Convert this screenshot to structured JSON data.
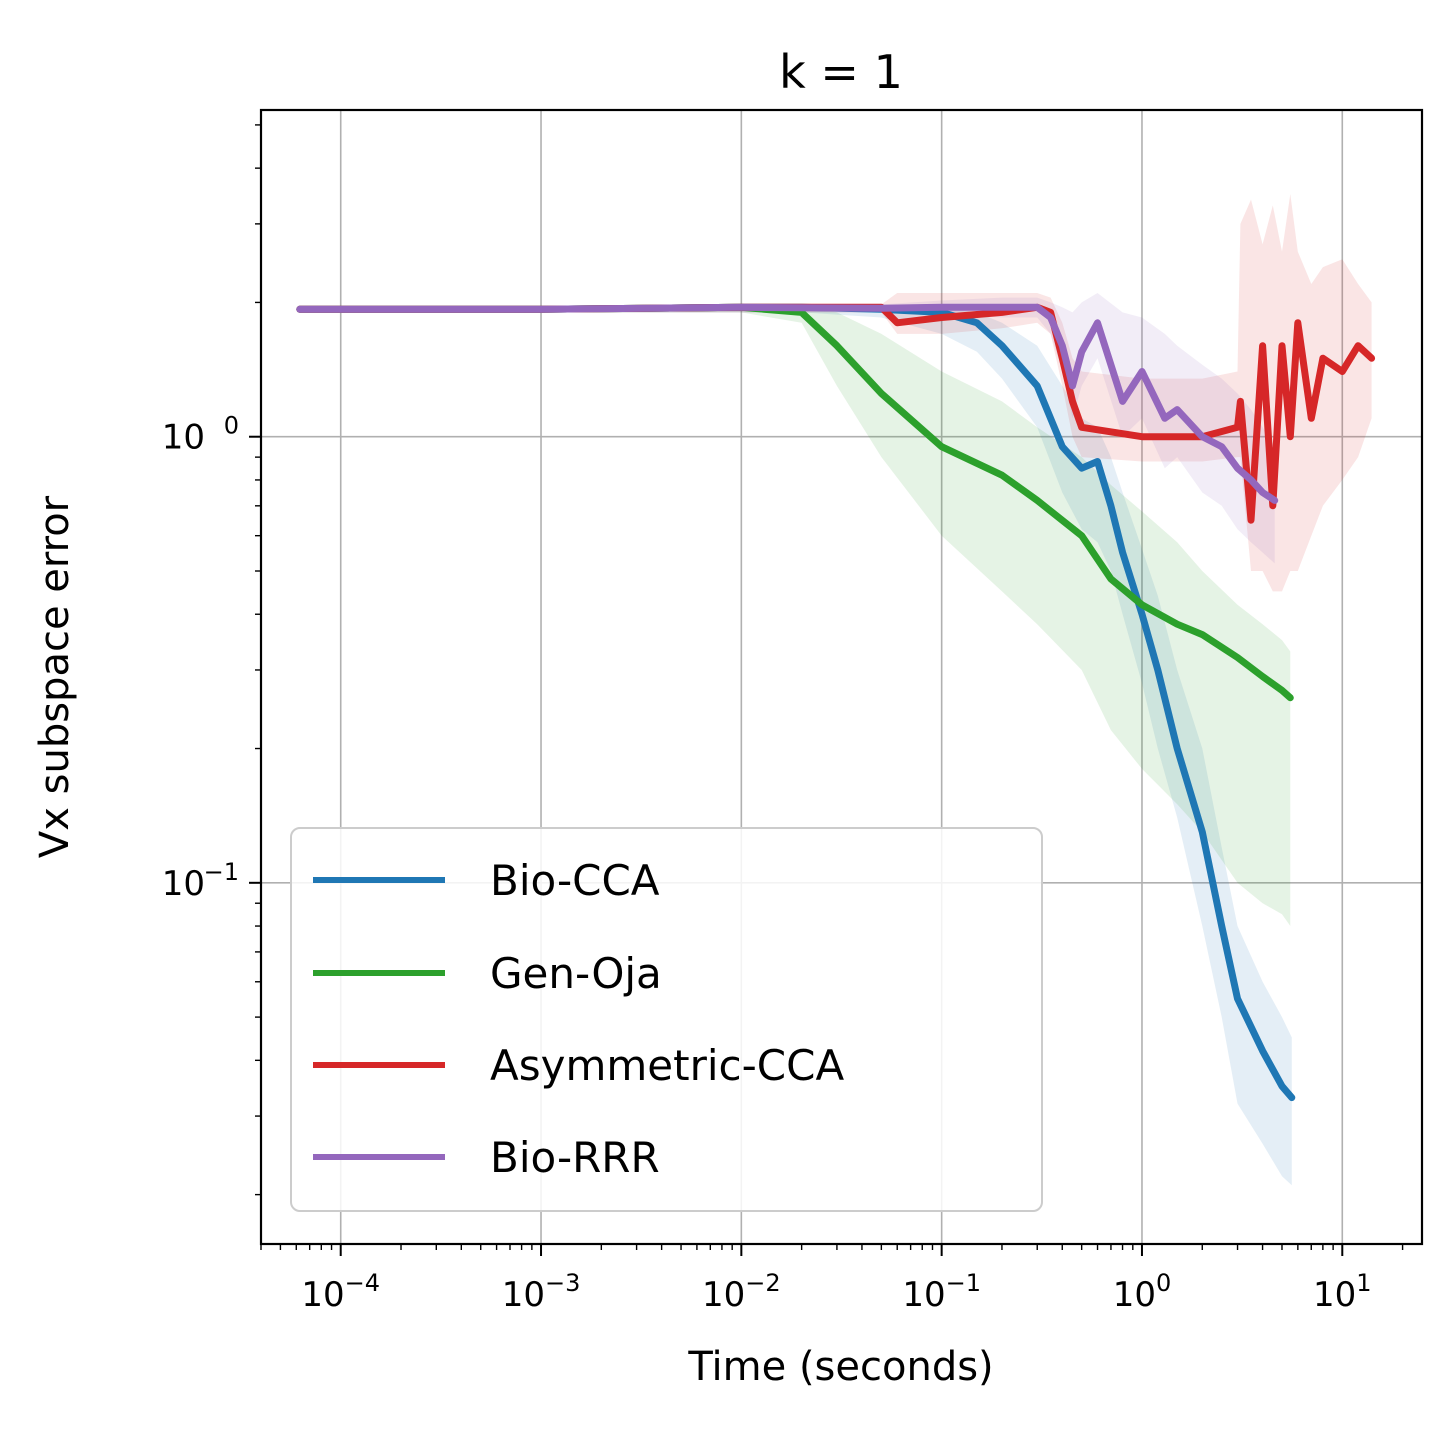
{
  "chart_data": {
    "type": "line",
    "title": "k = 1",
    "xlabel": "Time (seconds)",
    "ylabel": "Vx subspace error",
    "xscale": "log",
    "yscale": "log",
    "xlim": [
      4e-05,
      25
    ],
    "ylim": [
      0.0155,
      5.4
    ],
    "grid": true,
    "legend_position": "lower-left",
    "x_ticks": [
      {
        "value": 0.0001,
        "base": "10",
        "exp": "−4"
      },
      {
        "value": 0.001,
        "base": "10",
        "exp": "−3"
      },
      {
        "value": 0.01,
        "base": "10",
        "exp": "−2"
      },
      {
        "value": 0.1,
        "base": "10",
        "exp": "−1"
      },
      {
        "value": 1,
        "base": "10",
        "exp": "0"
      },
      {
        "value": 10,
        "base": "10",
        "exp": "1"
      }
    ],
    "y_ticks": [
      {
        "value": 0.1,
        "base": "10",
        "exp": "−1"
      },
      {
        "value": 1,
        "base": "10",
        "exp": "0"
      }
    ],
    "series": [
      {
        "name": "Bio-CCA",
        "color": "#1f77b4",
        "x": [
          6.25e-05,
          0.001,
          0.01,
          0.02,
          0.05,
          0.1,
          0.15,
          0.2,
          0.3,
          0.4,
          0.5,
          0.6,
          0.7,
          0.8,
          1.0,
          1.2,
          1.5,
          2.0,
          2.5,
          3.0,
          4.0,
          5.0,
          5.6
        ],
        "y": [
          1.93,
          1.93,
          1.95,
          1.95,
          1.93,
          1.9,
          1.8,
          1.6,
          1.3,
          0.95,
          0.85,
          0.88,
          0.7,
          0.55,
          0.4,
          0.3,
          0.2,
          0.13,
          0.08,
          0.055,
          0.042,
          0.035,
          0.033
        ],
        "band_lower": [
          1.9,
          1.9,
          1.9,
          1.9,
          1.85,
          1.7,
          1.55,
          1.35,
          1.05,
          0.75,
          0.62,
          0.58,
          0.5,
          0.4,
          0.28,
          0.2,
          0.14,
          0.08,
          0.05,
          0.032,
          0.026,
          0.022,
          0.021
        ],
        "band_upper": [
          1.96,
          1.96,
          1.98,
          1.98,
          1.96,
          1.95,
          1.9,
          1.8,
          1.6,
          1.3,
          1.1,
          1.05,
          0.9,
          0.75,
          0.56,
          0.44,
          0.3,
          0.2,
          0.12,
          0.08,
          0.06,
          0.05,
          0.045
        ]
      },
      {
        "name": "Gen-Oja",
        "color": "#2ca02c",
        "x": [
          6.25e-05,
          0.001,
          0.01,
          0.02,
          0.03,
          0.05,
          0.1,
          0.2,
          0.3,
          0.5,
          0.7,
          1.0,
          1.5,
          2.0,
          3.0,
          4.0,
          5.0,
          5.5
        ],
        "y": [
          1.93,
          1.93,
          1.95,
          1.9,
          1.6,
          1.25,
          0.95,
          0.82,
          0.72,
          0.6,
          0.48,
          0.42,
          0.38,
          0.36,
          0.32,
          0.29,
          0.27,
          0.26
        ],
        "band_lower": [
          1.9,
          1.9,
          1.9,
          1.8,
          1.3,
          0.9,
          0.6,
          0.45,
          0.38,
          0.3,
          0.22,
          0.18,
          0.15,
          0.13,
          0.1,
          0.09,
          0.085,
          0.08
        ],
        "band_upper": [
          1.96,
          1.96,
          1.98,
          1.96,
          1.9,
          1.7,
          1.4,
          1.2,
          1.05,
          0.9,
          0.78,
          0.68,
          0.58,
          0.5,
          0.42,
          0.38,
          0.35,
          0.33
        ]
      },
      {
        "name": "Asymmetric-CCA",
        "color": "#d62728",
        "x": [
          6.25e-05,
          0.001,
          0.01,
          0.05,
          0.06,
          0.1,
          0.2,
          0.3,
          0.35,
          0.4,
          0.45,
          0.5,
          1.0,
          2.0,
          3.0,
          3.1,
          3.5,
          4.0,
          4.5,
          5.0,
          5.5,
          6.0,
          7.0,
          8.0,
          10.0,
          12.0,
          14.0
        ],
        "y": [
          1.93,
          1.93,
          1.95,
          1.95,
          1.8,
          1.85,
          1.9,
          1.95,
          1.9,
          1.5,
          1.2,
          1.05,
          1.0,
          1.0,
          1.05,
          1.2,
          0.65,
          1.6,
          0.7,
          1.6,
          1.0,
          1.8,
          1.1,
          1.5,
          1.4,
          1.6,
          1.5
        ],
        "band_lower": [
          1.9,
          1.9,
          1.9,
          1.9,
          1.7,
          1.7,
          1.75,
          1.8,
          1.7,
          1.3,
          1.0,
          0.9,
          0.88,
          0.88,
          0.9,
          0.9,
          0.5,
          0.5,
          0.45,
          0.45,
          0.5,
          0.5,
          0.6,
          0.7,
          0.8,
          0.9,
          1.1
        ],
        "band_upper": [
          1.96,
          1.96,
          1.98,
          1.98,
          2.1,
          2.1,
          2.1,
          2.1,
          2.05,
          1.8,
          1.5,
          1.4,
          1.35,
          1.35,
          1.4,
          3.0,
          3.4,
          2.7,
          3.3,
          2.6,
          3.5,
          2.6,
          2.2,
          2.4,
          2.5,
          2.2,
          2.0
        ]
      },
      {
        "name": "Bio-RRR",
        "color": "#9467bd",
        "x": [
          6.25e-05,
          0.001,
          0.01,
          0.05,
          0.1,
          0.2,
          0.3,
          0.35,
          0.4,
          0.45,
          0.5,
          0.6,
          0.8,
          1.0,
          1.3,
          1.5,
          2.0,
          2.5,
          3.0,
          3.5,
          4.0,
          4.6
        ],
        "y": [
          1.93,
          1.93,
          1.95,
          1.94,
          1.95,
          1.95,
          1.95,
          1.85,
          1.6,
          1.3,
          1.55,
          1.8,
          1.2,
          1.4,
          1.1,
          1.15,
          1.0,
          0.95,
          0.85,
          0.8,
          0.75,
          0.72
        ],
        "band_lower": [
          1.9,
          1.9,
          1.9,
          1.9,
          1.88,
          1.85,
          1.85,
          1.7,
          1.4,
          1.1,
          1.3,
          1.5,
          1.0,
          1.1,
          0.85,
          0.9,
          0.75,
          0.7,
          0.62,
          0.58,
          0.55,
          0.52
        ],
        "band_upper": [
          1.96,
          1.96,
          1.98,
          1.98,
          2.02,
          2.05,
          2.05,
          2.0,
          1.95,
          1.9,
          2.0,
          2.1,
          1.9,
          1.85,
          1.7,
          1.6,
          1.45,
          1.35,
          1.25,
          1.15,
          1.05,
          0.95
        ]
      }
    ]
  }
}
